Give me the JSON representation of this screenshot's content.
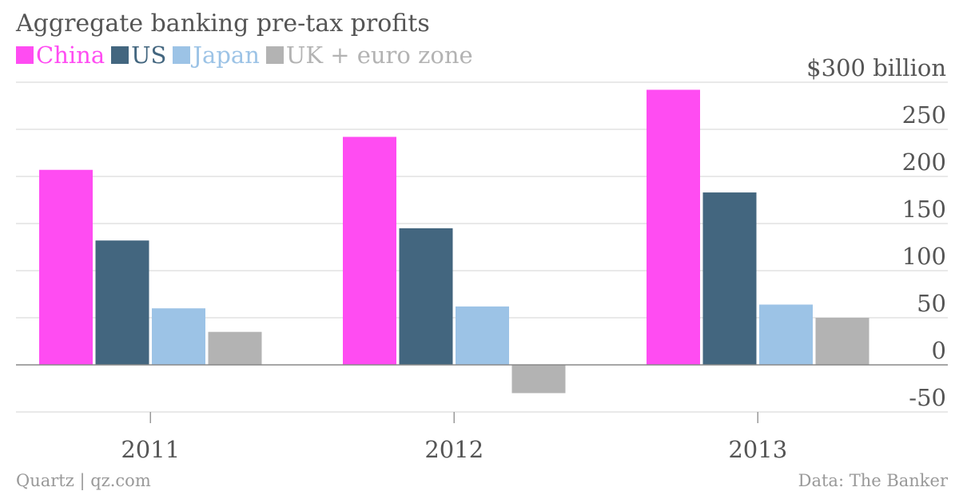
{
  "header": {
    "title": "Aggregate banking pre-tax profits"
  },
  "footer": {
    "credit": "Quartz | qz.com",
    "source": "Data: The Banker"
  },
  "chart_data": {
    "type": "bar",
    "title": "Aggregate banking pre-tax profits",
    "xlabel": "",
    "ylabel": "",
    "categories": [
      "2011",
      "2012",
      "2013"
    ],
    "series": [
      {
        "name": "China",
        "color": "#ff4cf2",
        "values": [
          207,
          242,
          292
        ]
      },
      {
        "name": "US",
        "color": "#43667f",
        "values": [
          132,
          145,
          183
        ]
      },
      {
        "name": "Japan",
        "color": "#9cc3e6",
        "values": [
          60,
          62,
          64
        ]
      },
      {
        "name": "UK + euro zone",
        "color": "#b3b3b3",
        "values": [
          35,
          -30,
          50
        ]
      }
    ],
    "ylim": [
      -50,
      300
    ],
    "yticks": [
      -50,
      0,
      50,
      100,
      150,
      200,
      250,
      300
    ],
    "ytick_labels": [
      "-50",
      "0",
      "50",
      "100",
      "150",
      "200",
      "250",
      "$300 billion"
    ],
    "grid": true,
    "legend": "top-left",
    "axis_side": "right"
  }
}
